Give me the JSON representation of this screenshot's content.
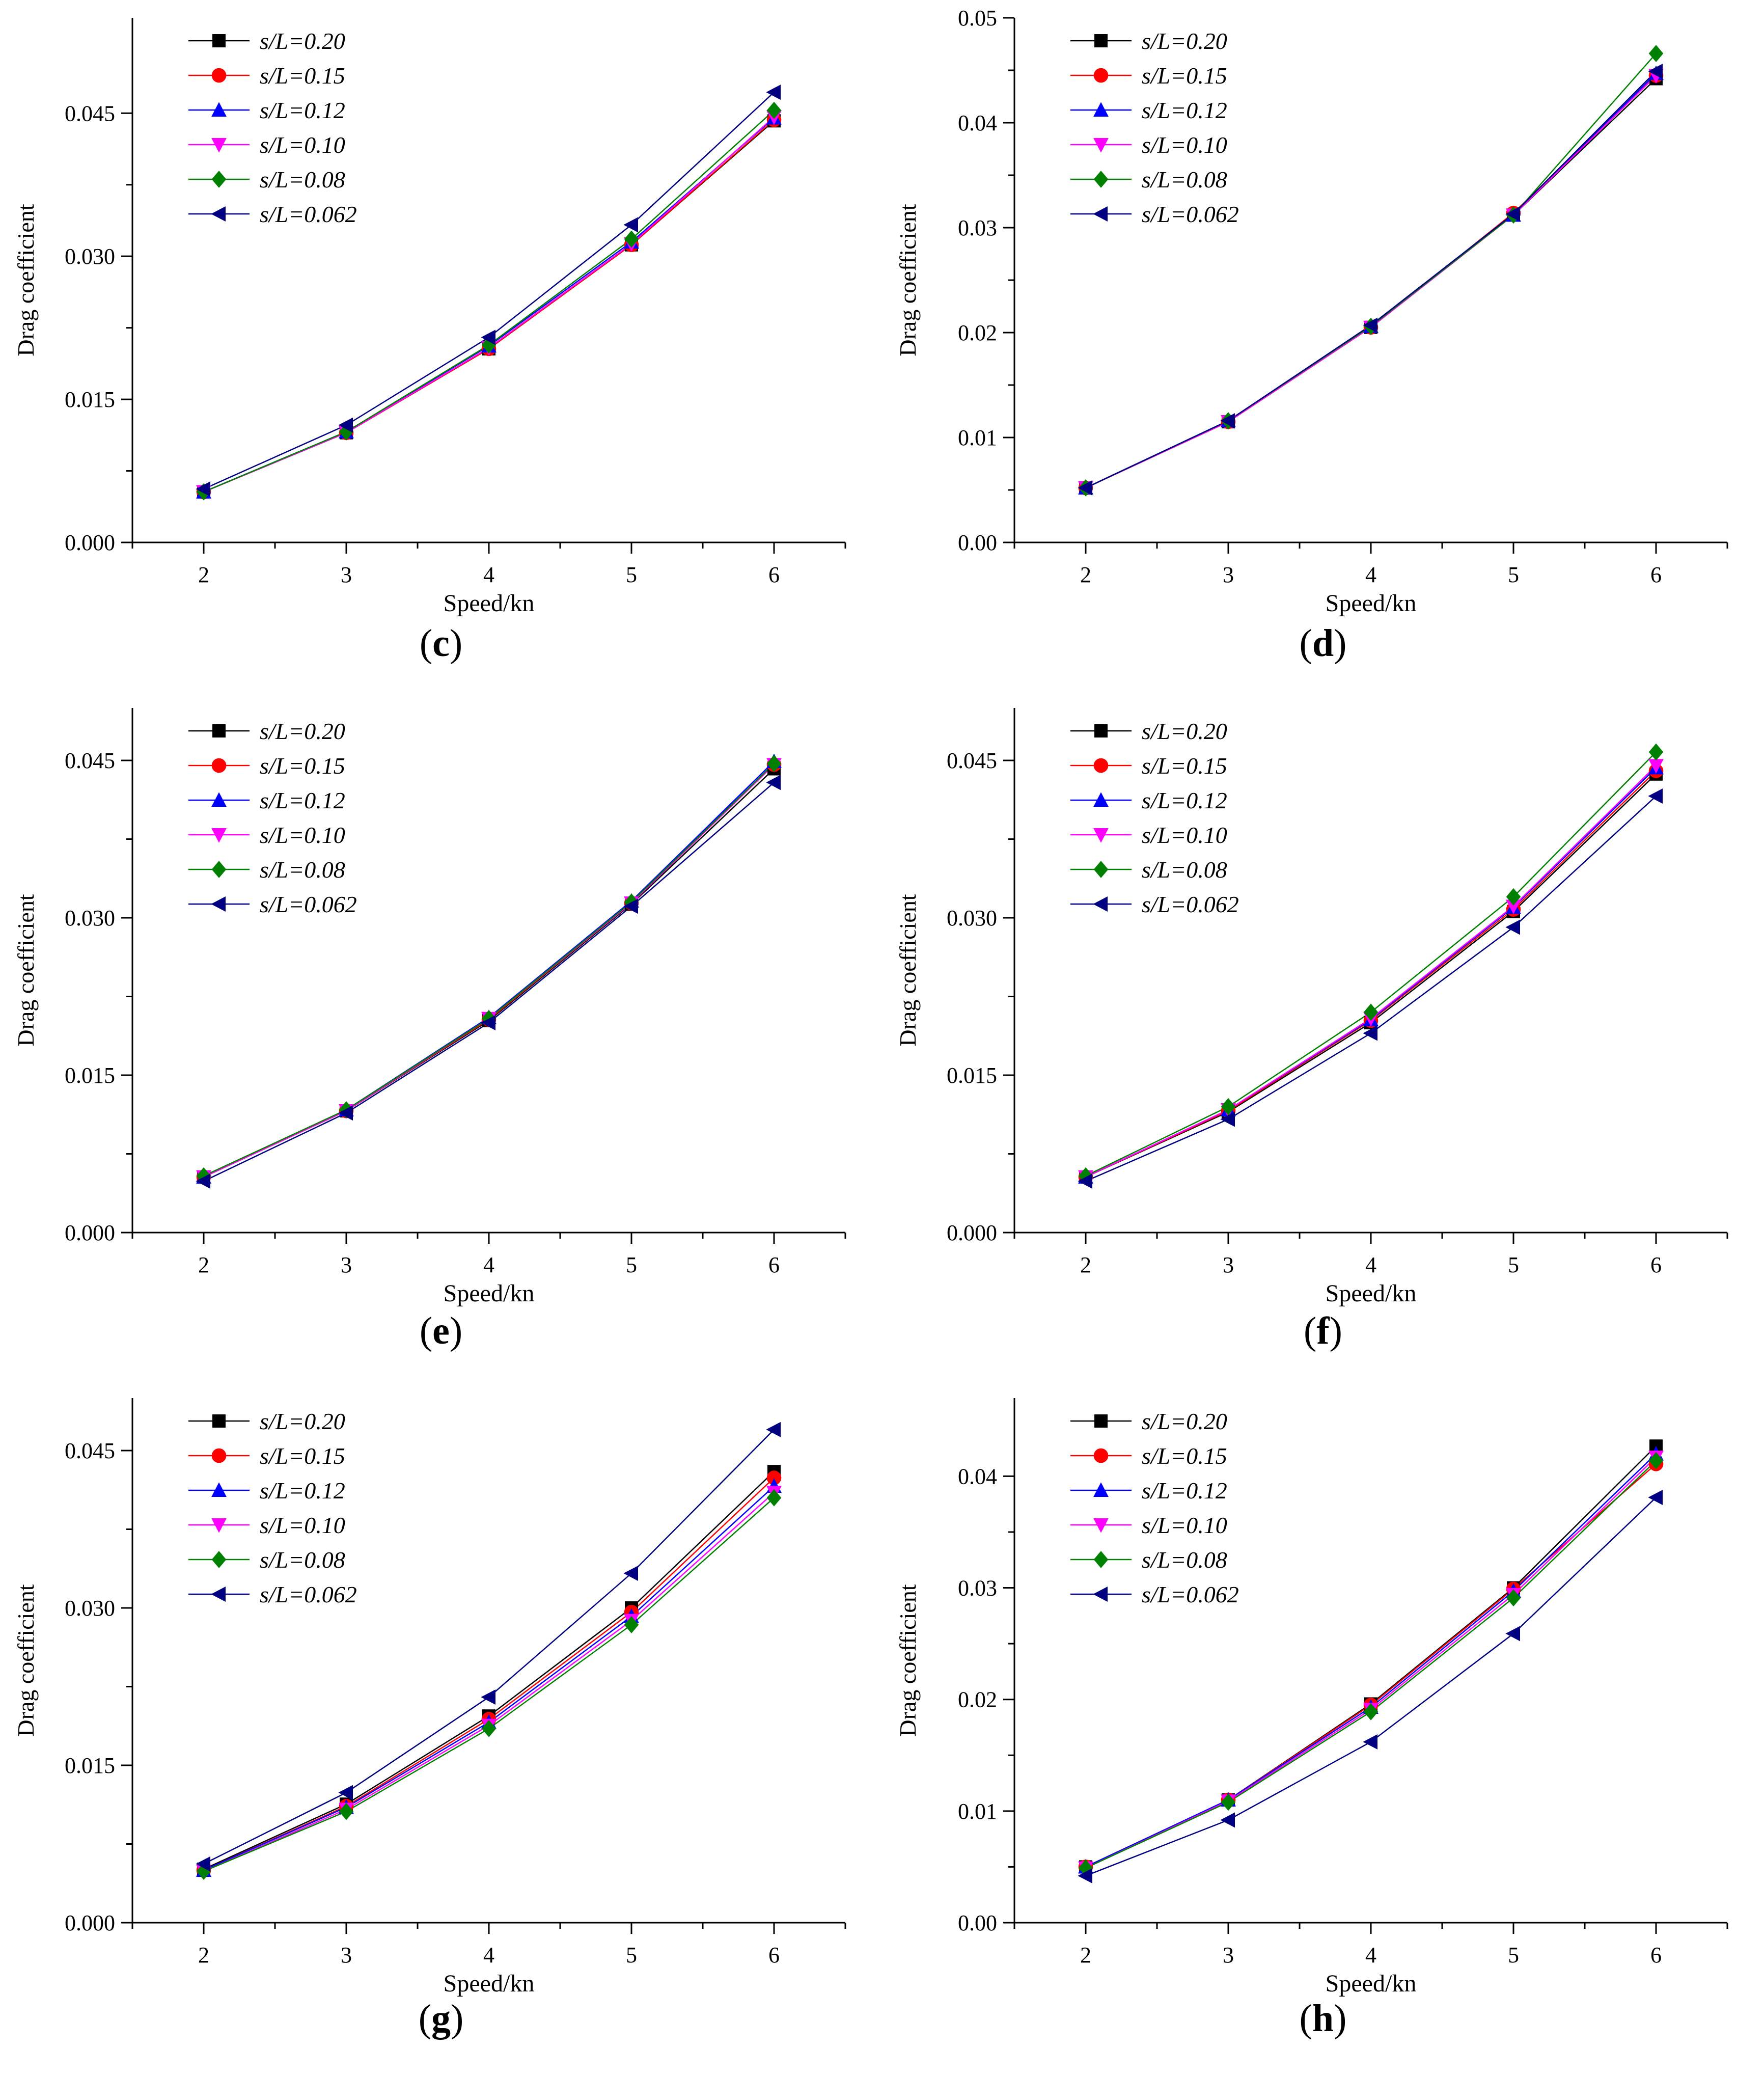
{
  "series_styles": [
    {
      "name": "s/L=0.20",
      "color": "#000000",
      "marker": "square"
    },
    {
      "name": "s/L=0.15",
      "color": "#ff0000",
      "marker": "circle"
    },
    {
      "name": "s/L=0.12",
      "color": "#0000ff",
      "marker": "triangle-up"
    },
    {
      "name": "s/L=0.10",
      "color": "#ff00ff",
      "marker": "triangle-down"
    },
    {
      "name": "s/L=0.08",
      "color": "#008000",
      "marker": "diamond"
    },
    {
      "name": "s/L=0.062",
      "color": "#000080",
      "marker": "triangle-left"
    }
  ],
  "chart_data": [
    {
      "panel": "c",
      "caption": "c",
      "type": "line",
      "title": "",
      "xlabel": "Speed/kn",
      "ylabel": "Drag coefficient",
      "categories": [
        2,
        3,
        4,
        5,
        6
      ],
      "xlim": [
        1.5,
        6.5
      ],
      "ylim": [
        0,
        0.055
      ],
      "yticks": [
        0.0,
        0.015,
        0.03,
        0.045
      ],
      "ytick_labels": [
        "0.000",
        "0.015",
        "0.030",
        "0.045"
      ],
      "legend": "top-left",
      "series": [
        {
          "name": "s/L=0.20",
          "values": [
            0.0053,
            0.0115,
            0.0203,
            0.0312,
            0.0442
          ]
        },
        {
          "name": "s/L=0.15",
          "values": [
            0.0053,
            0.0115,
            0.0203,
            0.0312,
            0.0443
          ]
        },
        {
          "name": "s/L=0.12",
          "values": [
            0.0053,
            0.0116,
            0.0206,
            0.0315,
            0.0445
          ]
        },
        {
          "name": "s/L=0.10",
          "values": [
            0.0053,
            0.0115,
            0.0204,
            0.0313,
            0.0446
          ]
        },
        {
          "name": "s/L=0.08",
          "values": [
            0.0053,
            0.0116,
            0.0207,
            0.0318,
            0.0453
          ]
        },
        {
          "name": "s/L=0.062",
          "values": [
            0.0056,
            0.0123,
            0.0215,
            0.0333,
            0.0472
          ]
        }
      ]
    },
    {
      "panel": "d",
      "caption": "d",
      "type": "line",
      "title": "",
      "xlabel": "Speed/kn",
      "ylabel": "Drag coefficient",
      "categories": [
        2,
        3,
        4,
        5,
        6
      ],
      "xlim": [
        1.5,
        6.5
      ],
      "ylim": [
        0,
        0.05
      ],
      "yticks": [
        0.0,
        0.01,
        0.02,
        0.03,
        0.04,
        0.05
      ],
      "ytick_labels": [
        "0.00",
        "0.01",
        "0.02",
        "0.03",
        "0.04",
        "0.05"
      ],
      "legend": "top-left",
      "series": [
        {
          "name": "s/L=0.20",
          "values": [
            0.0052,
            0.0115,
            0.0205,
            0.0312,
            0.0442
          ]
        },
        {
          "name": "s/L=0.15",
          "values": [
            0.0052,
            0.0115,
            0.0205,
            0.0314,
            0.0445
          ]
        },
        {
          "name": "s/L=0.12",
          "values": [
            0.0052,
            0.0116,
            0.0206,
            0.0312,
            0.0447
          ]
        },
        {
          "name": "s/L=0.10",
          "values": [
            0.0052,
            0.0115,
            0.0205,
            0.0312,
            0.0445
          ]
        },
        {
          "name": "s/L=0.08",
          "values": [
            0.0052,
            0.0116,
            0.0206,
            0.0312,
            0.0466
          ]
        },
        {
          "name": "s/L=0.062",
          "values": [
            0.0052,
            0.0116,
            0.0207,
            0.0313,
            0.0449
          ]
        }
      ]
    },
    {
      "panel": "e",
      "caption": "e",
      "type": "line",
      "title": "",
      "xlabel": "Speed/kn",
      "ylabel": "Drag coefficient",
      "categories": [
        2,
        3,
        4,
        5,
        6
      ],
      "xlim": [
        1.5,
        6.5
      ],
      "ylim": [
        0,
        0.05
      ],
      "yticks": [
        0.0,
        0.015,
        0.03,
        0.045
      ],
      "ytick_labels": [
        "0.000",
        "0.015",
        "0.030",
        "0.045"
      ],
      "legend": "top-left",
      "series": [
        {
          "name": "s/L=0.20",
          "values": [
            0.0053,
            0.0116,
            0.0202,
            0.0313,
            0.0442
          ]
        },
        {
          "name": "s/L=0.15",
          "values": [
            0.0053,
            0.0116,
            0.0203,
            0.0314,
            0.0446
          ]
        },
        {
          "name": "s/L=0.12",
          "values": [
            0.0053,
            0.0117,
            0.0205,
            0.0316,
            0.0449
          ]
        },
        {
          "name": "s/L=0.10",
          "values": [
            0.0053,
            0.0116,
            0.0204,
            0.0314,
            0.0446
          ]
        },
        {
          "name": "s/L=0.08",
          "values": [
            0.0054,
            0.0117,
            0.0204,
            0.0315,
            0.0447
          ]
        },
        {
          "name": "s/L=0.062",
          "values": [
            0.0049,
            0.0114,
            0.02,
            0.0311,
            0.0429
          ]
        }
      ]
    },
    {
      "panel": "f",
      "caption": "f",
      "type": "line",
      "title": "",
      "xlabel": "Speed/kn",
      "ylabel": "Drag coefficient",
      "categories": [
        2,
        3,
        4,
        5,
        6
      ],
      "xlim": [
        1.5,
        6.5
      ],
      "ylim": [
        0,
        0.05
      ],
      "yticks": [
        0.0,
        0.015,
        0.03,
        0.045
      ],
      "ytick_labels": [
        "0.000",
        "0.015",
        "0.030",
        "0.045"
      ],
      "legend": "top-left",
      "series": [
        {
          "name": "s/L=0.20",
          "values": [
            0.0053,
            0.0115,
            0.02,
            0.0306,
            0.0437
          ]
        },
        {
          "name": "s/L=0.15",
          "values": [
            0.0053,
            0.0116,
            0.0202,
            0.0308,
            0.044
          ]
        },
        {
          "name": "s/L=0.12",
          "values": [
            0.0053,
            0.0117,
            0.0203,
            0.031,
            0.0443
          ]
        },
        {
          "name": "s/L=0.10",
          "values": [
            0.0053,
            0.0117,
            0.0204,
            0.0311,
            0.0445
          ]
        },
        {
          "name": "s/L=0.08",
          "values": [
            0.0054,
            0.012,
            0.021,
            0.032,
            0.0458
          ]
        },
        {
          "name": "s/L=0.062",
          "values": [
            0.0049,
            0.0108,
            0.019,
            0.0291,
            0.0416
          ]
        }
      ]
    },
    {
      "panel": "g",
      "caption": "g",
      "type": "line",
      "title": "",
      "xlabel": "Speed/kn",
      "ylabel": "Drag coefficient",
      "categories": [
        2,
        3,
        4,
        5,
        6
      ],
      "xlim": [
        1.5,
        6.5
      ],
      "ylim": [
        0,
        0.05
      ],
      "yticks": [
        0.0,
        0.015,
        0.03,
        0.045
      ],
      "ytick_labels": [
        "0.000",
        "0.015",
        "0.030",
        "0.045"
      ],
      "legend": "top-left",
      "series": [
        {
          "name": "s/L=0.20",
          "values": [
            0.0051,
            0.0113,
            0.0197,
            0.03,
            0.043
          ]
        },
        {
          "name": "s/L=0.15",
          "values": [
            0.005,
            0.0111,
            0.0194,
            0.0296,
            0.0424
          ]
        },
        {
          "name": "s/L=0.12",
          "values": [
            0.005,
            0.011,
            0.0191,
            0.0292,
            0.0416
          ]
        },
        {
          "name": "s/L=0.10",
          "values": [
            0.0049,
            0.0108,
            0.0188,
            0.0288,
            0.041
          ]
        },
        {
          "name": "s/L=0.08",
          "values": [
            0.0049,
            0.0106,
            0.0185,
            0.0284,
            0.0405
          ]
        },
        {
          "name": "s/L=0.062",
          "values": [
            0.0056,
            0.0124,
            0.0215,
            0.0333,
            0.047
          ]
        }
      ]
    },
    {
      "panel": "h",
      "caption": "h",
      "type": "line",
      "title": "",
      "xlabel": "Speed/kn",
      "ylabel": "Drag coefficient",
      "categories": [
        2,
        3,
        4,
        5,
        6
      ],
      "xlim": [
        1.5,
        6.5
      ],
      "ylim": [
        0,
        0.047
      ],
      "yticks": [
        0.0,
        0.01,
        0.02,
        0.03,
        0.04
      ],
      "ytick_labels": [
        "0.00",
        "0.01",
        "0.02",
        "0.03",
        "0.04"
      ],
      "legend": "top-left",
      "series": [
        {
          "name": "s/L=0.20",
          "values": [
            0.005,
            0.011,
            0.0196,
            0.03,
            0.0427
          ]
        },
        {
          "name": "s/L=0.15",
          "values": [
            0.005,
            0.011,
            0.0195,
            0.0299,
            0.0411
          ]
        },
        {
          "name": "s/L=0.12",
          "values": [
            0.005,
            0.011,
            0.0193,
            0.0297,
            0.042
          ]
        },
        {
          "name": "s/L=0.10",
          "values": [
            0.0049,
            0.0109,
            0.0191,
            0.0294,
            0.0417
          ]
        },
        {
          "name": "s/L=0.08",
          "values": [
            0.0049,
            0.0108,
            0.0189,
            0.0291,
            0.0414
          ]
        },
        {
          "name": "s/L=0.062",
          "values": [
            0.0042,
            0.0092,
            0.0162,
            0.0259,
            0.0381
          ]
        }
      ]
    }
  ]
}
